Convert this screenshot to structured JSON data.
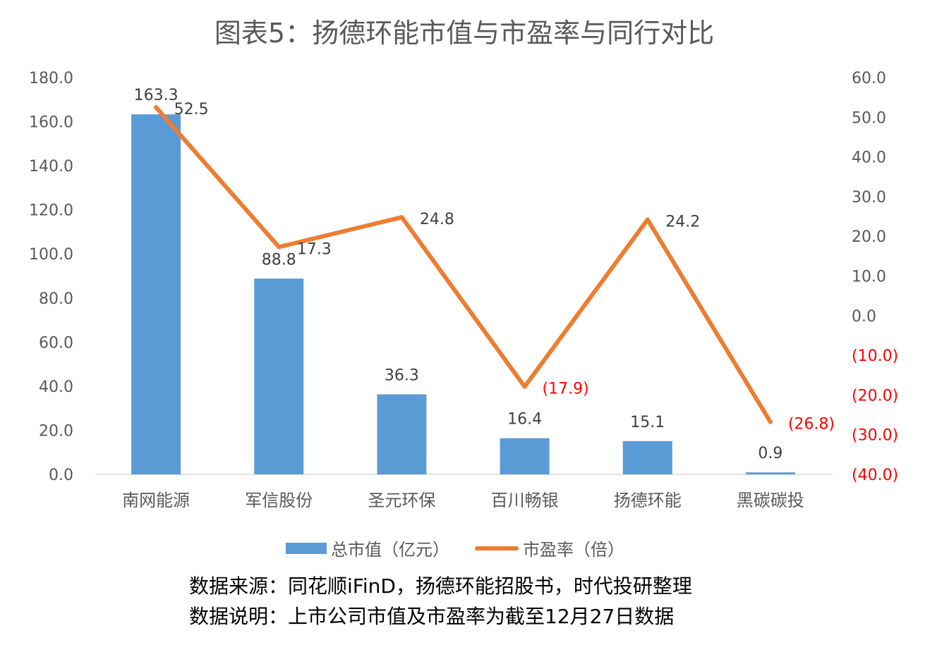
{
  "chart_data": {
    "type": "bar+line",
    "title": "图表5：扬德环能市值与市盈率与同行对比",
    "categories": [
      "南网能源",
      "军信股份",
      "圣元环保",
      "百川畅银",
      "扬德环能",
      "黑碳碳投"
    ],
    "series": [
      {
        "name": "总市值（亿元）",
        "type": "bar",
        "axis": "left",
        "color": "#5b9bd5",
        "values": [
          163.3,
          88.8,
          36.3,
          16.4,
          15.1,
          0.9
        ],
        "labels": [
          "163.3",
          "88.8",
          "36.3",
          "16.4",
          "15.1",
          "0.9"
        ]
      },
      {
        "name": "市盈率（倍）",
        "type": "line",
        "axis": "right",
        "color": "#ed7d31",
        "values": [
          52.5,
          17.3,
          24.8,
          -17.9,
          24.2,
          -26.8
        ],
        "labels": [
          "52.5",
          "17.3",
          "24.8",
          "(17.9)",
          "24.2",
          "(26.8)"
        ]
      }
    ],
    "left_axis": {
      "range": [
        0,
        180
      ],
      "ticks": [
        0,
        20,
        40,
        60,
        80,
        100,
        120,
        140,
        160,
        180
      ],
      "tick_labels": [
        "0.0",
        "20.0",
        "40.0",
        "60.0",
        "80.0",
        "100.0",
        "120.0",
        "140.0",
        "160.0",
        "180.0"
      ]
    },
    "right_axis": {
      "range": [
        -40,
        60
      ],
      "ticks": [
        -40,
        -30,
        -20,
        -10,
        0,
        10,
        20,
        30,
        40,
        50,
        60
      ],
      "tick_labels": [
        "(40.0)",
        "(30.0)",
        "(20.0)",
        "(10.0)",
        "0.0",
        "10.0",
        "20.0",
        "30.0",
        "40.0",
        "50.0",
        "60.0"
      ]
    },
    "negative_color": "#ff0000",
    "legend_position": "bottom",
    "grid": false
  },
  "notes": {
    "source": "数据来源：同花顺iFinD，扬德环能招股书，时代投研整理",
    "explanation": "数据说明：上市公司市值及市盈率为截至12月27日数据"
  }
}
